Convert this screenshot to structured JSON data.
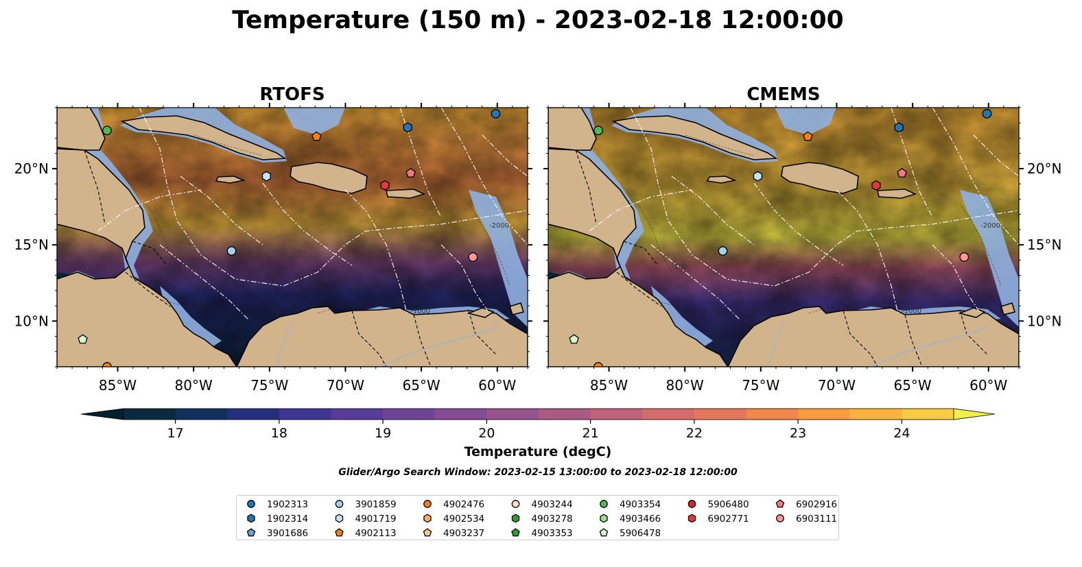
{
  "title": "Temperature (150 m) - 2023-02-18 12:00:00",
  "panels": [
    {
      "id": "rtofs",
      "title": "RTOFS"
    },
    {
      "id": "cmems",
      "title": "CMEMS"
    }
  ],
  "axes": {
    "lon_range": [
      -89,
      -58
    ],
    "lat_range": [
      7.0,
      24.0
    ],
    "lon_ticks": [
      -85,
      -80,
      -75,
      -70,
      -65,
      -60
    ],
    "lon_tick_labels": [
      "85°W",
      "80°W",
      "75°W",
      "70°W",
      "65°W",
      "60°W"
    ],
    "lat_ticks": [
      10,
      15,
      20
    ],
    "lat_tick_labels": [
      "10°N",
      "15°N",
      "20°N"
    ]
  },
  "contour_labels": [
    "-100",
    "-1000",
    "-2000"
  ],
  "colorbar": {
    "label": "Temperature (degC)",
    "min": 16.5,
    "max": 24.5,
    "step": 0.5,
    "ticks": [
      17,
      18,
      19,
      20,
      21,
      22,
      23,
      24
    ],
    "tick_labels": [
      "17",
      "18",
      "19",
      "20",
      "21",
      "22",
      "23",
      "24"
    ],
    "under_color": "#03202e",
    "over_color": "#f0f04a",
    "colors": [
      "#0a2a40",
      "#12305c",
      "#262f7e",
      "#3f3592",
      "#573c98",
      "#6d4496",
      "#834b92",
      "#97538b",
      "#ab5a84",
      "#c0627a",
      "#d46b6c",
      "#e5785c",
      "#f3884a",
      "#f99c3e",
      "#fcb23d",
      "#f8cb44"
    ]
  },
  "land_color": "#d2b48c",
  "shelf_color": "#8fb0e0",
  "search_window": "Glider/Argo Search Window: 2023-02-15 13:00:00 to 2023-02-18 12:00:00",
  "platforms": [
    {
      "id": "1902313",
      "marker": "circle",
      "color": "#1f77b4",
      "lon": -60.1,
      "lat": 23.6
    },
    {
      "id": "1902314",
      "marker": "hexagon",
      "color": "#1f77b4",
      "lon": -65.9,
      "lat": 22.7
    },
    {
      "id": "3901686",
      "marker": "pentagon",
      "color": "#6f9fd8",
      "lon": null,
      "lat": null
    },
    {
      "id": "3901859",
      "marker": "circle",
      "color": "#a6cdea",
      "lon": -77.5,
      "lat": 14.6
    },
    {
      "id": "4901719",
      "marker": "hexagon",
      "color": "#c6e3f5",
      "lon": -75.2,
      "lat": 19.5
    },
    {
      "id": "4902113",
      "marker": "pentagon",
      "color": "#ff7f0e",
      "lon": -71.9,
      "lat": 22.1
    },
    {
      "id": "4902476",
      "marker": "circle",
      "color": "#ff7f0e",
      "lon": -85.7,
      "lat": 7.0
    },
    {
      "id": "4902534",
      "marker": "hexagon",
      "color": "#ffaa5c",
      "lon": null,
      "lat": null
    },
    {
      "id": "4903237",
      "marker": "pentagon",
      "color": "#ffc58f",
      "lon": null,
      "lat": null
    },
    {
      "id": "4903244",
      "marker": "circle",
      "color": "#ffe0c4",
      "lon": null,
      "lat": null
    },
    {
      "id": "4903278",
      "marker": "hexagon",
      "color": "#2ca02c",
      "lon": null,
      "lat": null
    },
    {
      "id": "4903353",
      "marker": "pentagon",
      "color": "#2ca02c",
      "lon": null,
      "lat": null
    },
    {
      "id": "4903354",
      "marker": "circle",
      "color": "#55b855",
      "lon": -85.7,
      "lat": 22.5
    },
    {
      "id": "4903466",
      "marker": "hexagon",
      "color": "#98df8a",
      "lon": null,
      "lat": null
    },
    {
      "id": "5906478",
      "marker": "pentagon",
      "color": "#d6f5c8",
      "lon": -87.3,
      "lat": 8.8
    },
    {
      "id": "5906480",
      "marker": "circle",
      "color": "#d62728",
      "lon": null,
      "lat": null
    },
    {
      "id": "6902771",
      "marker": "hexagon",
      "color": "#e3393b",
      "lon": -67.4,
      "lat": 18.9
    },
    {
      "id": "6902916",
      "marker": "pentagon",
      "color": "#f07a80",
      "lon": -65.7,
      "lat": 19.7
    },
    {
      "id": "6903111",
      "marker": "circle",
      "color": "#ff9896",
      "lon": -61.6,
      "lat": 14.2
    }
  ],
  "legend_columns": [
    [
      "1902313",
      "1902314",
      "3901686"
    ],
    [
      "3901859",
      "4901719",
      "4902113"
    ],
    [
      "4902476",
      "4902534",
      "4903237"
    ],
    [
      "4903244",
      "4903278",
      "4903353"
    ],
    [
      "4903354",
      "4903466",
      "5906478"
    ],
    [
      "5906480",
      "6902771"
    ],
    [
      "6902916",
      "6903111"
    ]
  ]
}
